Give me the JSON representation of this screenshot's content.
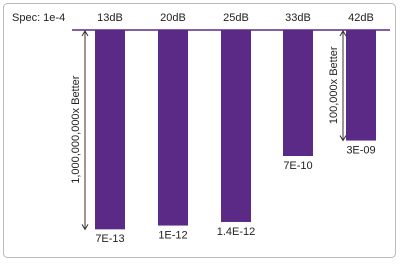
{
  "chart_data": {
    "type": "bar",
    "log_scale": true,
    "spec": {
      "label": "Spec: 1e-4",
      "value": 0.0001
    },
    "categories": [
      "13dB",
      "20dB",
      "25dB",
      "33dB",
      "42dB"
    ],
    "values": [
      7e-13,
      1e-12,
      1.4e-12,
      7e-10,
      3e-09
    ],
    "value_labels": [
      "7E-13",
      "1E-12",
      "1.4E-12",
      "7E-10",
      "3E-09"
    ],
    "color": "#5b2a86",
    "ylim": [
      0.0001,
      1e-13
    ],
    "annotations": [
      "1,000,000,000x Better",
      "100,000x Better"
    ]
  }
}
